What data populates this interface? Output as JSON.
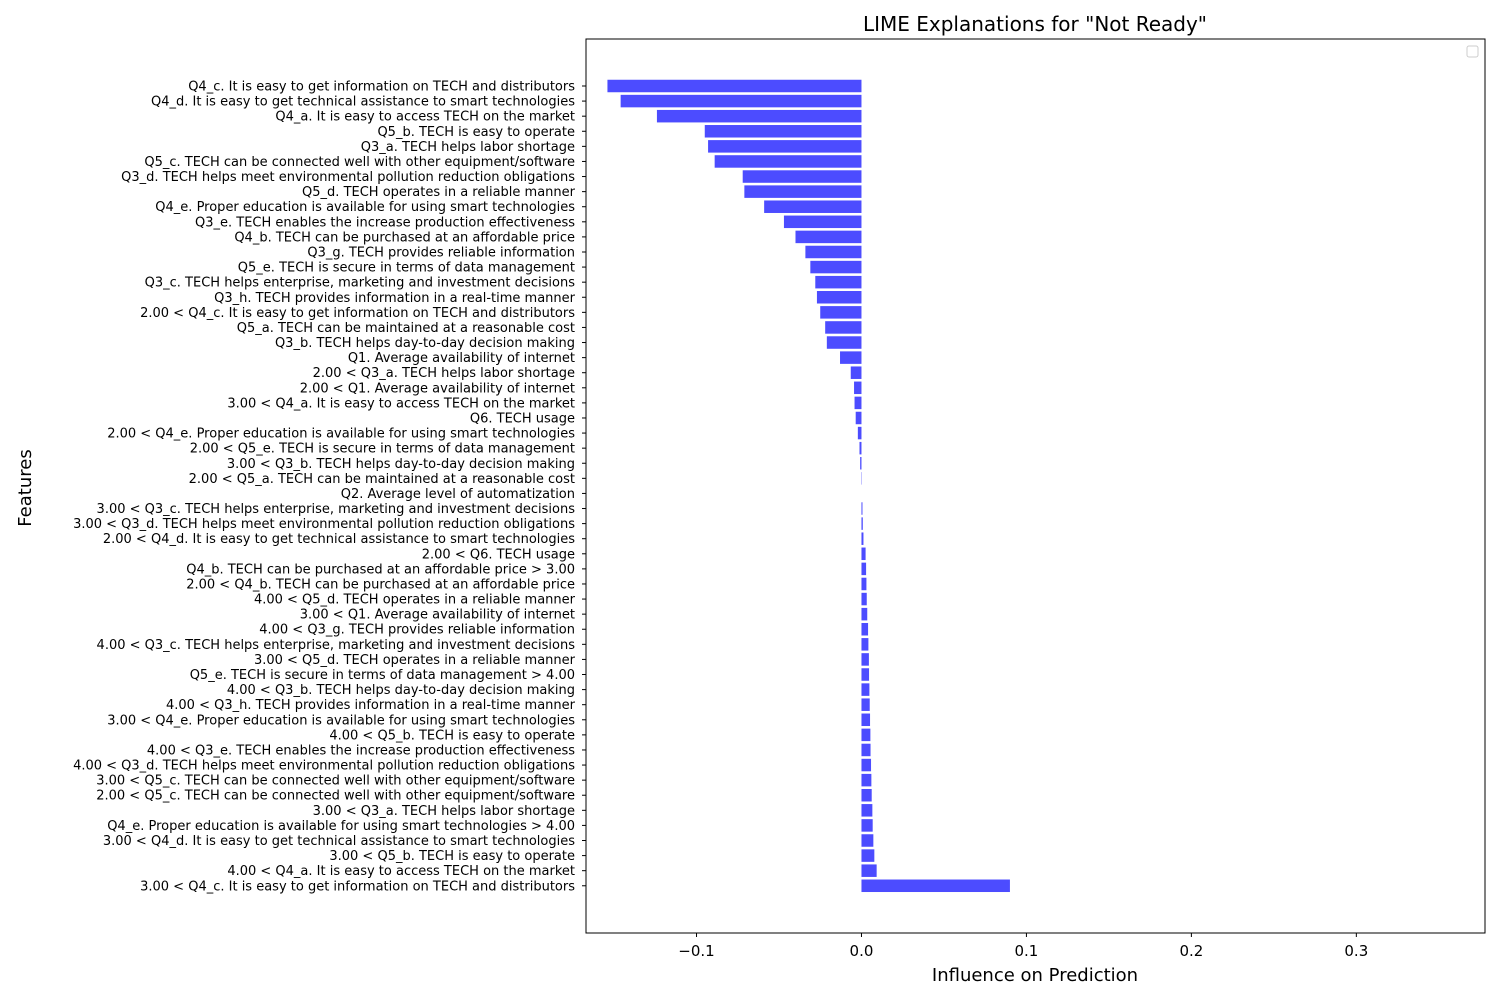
{
  "chart_data": {
    "type": "bar",
    "orientation": "horizontal",
    "title": "LIME Explanations for \"Not Ready\"",
    "xlabel": "Influence on Prediction",
    "ylabel": "Features",
    "xlim": [
      -0.167,
      0.378
    ],
    "x_ticks": [
      -0.1,
      0.0,
      0.1,
      0.2,
      0.3
    ],
    "x_tick_labels": [
      "−0.1",
      "0.0",
      "0.1",
      "0.2",
      "0.3"
    ],
    "grid": false,
    "legend": "top-right (empty)",
    "bar_color": "#4c4cff",
    "categories": [
      "Q4_c. It is easy to get information on TECH and distributors",
      "Q4_d. It is easy to get technical assistance to smart technologies",
      "Q4_a. It is easy to access TECH on the market",
      "Q5_b. TECH is easy to operate",
      "Q3_a. TECH helps labor shortage",
      "Q5_c. TECH can be connected well with other equipment/software",
      "Q3_d. TECH helps meet environmental pollution reduction obligations",
      "Q5_d. TECH operates in a reliable manner",
      "Q4_e. Proper education is available for using smart technologies",
      "Q3_e. TECH enables the increase production effectiveness",
      "Q4_b. TECH can be purchased at an affordable price",
      "Q3_g. TECH provides reliable information",
      "Q5_e. TECH is secure in terms of data management",
      "Q3_c. TECH helps enterprise, marketing and investment decisions",
      "Q3_h. TECH provides information in a real-time manner",
      "2.00 < Q4_c. It is easy to get information on TECH and distributors",
      "Q5_a. TECH can be maintained at a reasonable cost",
      "Q3_b. TECH helps day-to-day decision making",
      "Q1. Average availability of internet",
      "2.00 < Q3_a. TECH helps labor shortage",
      "2.00 < Q1. Average availability of internet",
      "3.00 < Q4_a. It is easy to access TECH on the market",
      "Q6. TECH usage",
      "2.00 < Q4_e. Proper education is available for using smart technologies",
      "2.00 < Q5_e. TECH is secure in terms of data management",
      "3.00 < Q3_b. TECH helps day-to-day decision making",
      "2.00 < Q5_a. TECH can be maintained at a reasonable cost",
      "Q2. Average level of automatization",
      "3.00 < Q3_c. TECH helps enterprise, marketing and investment decisions",
      "3.00 < Q3_d. TECH helps meet environmental pollution reduction obligations",
      "2.00 < Q4_d. It is easy to get technical assistance to smart technologies",
      "2.00 < Q6. TECH usage",
      "Q4_b. TECH can be purchased at an affordable price > 3.00",
      "2.00 < Q4_b. TECH can be purchased at an affordable price",
      "4.00 < Q5_d. TECH operates in a reliable manner",
      "3.00 < Q1. Average availability of internet",
      "4.00 < Q3_g. TECH provides reliable information",
      "4.00 < Q3_c. TECH helps enterprise, marketing and investment decisions",
      "3.00 < Q5_d. TECH operates in a reliable manner",
      "Q5_e. TECH is secure in terms of data management > 4.00",
      "4.00 < Q3_b. TECH helps day-to-day decision making",
      "4.00 < Q3_h. TECH provides information in a real-time manner",
      "3.00 < Q4_e. Proper education is available for using smart technologies",
      "4.00 < Q5_b. TECH is easy to operate",
      "4.00 < Q3_e. TECH enables the increase production effectiveness",
      "4.00 < Q3_d. TECH helps meet environmental pollution reduction obligations",
      "3.00 < Q5_c. TECH can be connected well with other equipment/software",
      "2.00 < Q5_c. TECH can be connected well with other equipment/software",
      "3.00 < Q3_a. TECH helps labor shortage",
      "Q4_e. Proper education is available for using smart technologies > 4.00",
      "3.00 < Q4_d. It is easy to get technical assistance to smart technologies",
      "3.00 < Q5_b. TECH is easy to operate",
      "4.00 < Q4_a. It is easy to access TECH on the market",
      "3.00 < Q4_c. It is easy to get information on TECH and distributors"
    ],
    "values": [
      -0.154,
      -0.146,
      -0.124,
      -0.095,
      -0.093,
      -0.089,
      -0.072,
      -0.071,
      -0.059,
      -0.047,
      -0.04,
      -0.034,
      -0.031,
      -0.028,
      -0.027,
      -0.025,
      -0.022,
      -0.021,
      -0.013,
      -0.0065,
      -0.0045,
      -0.0042,
      -0.0035,
      -0.0022,
      -0.0012,
      -0.0008,
      -0.0002,
      0.0,
      0.0006,
      0.0008,
      0.0012,
      0.0025,
      0.0028,
      0.003,
      0.0032,
      0.0035,
      0.004,
      0.0042,
      0.0045,
      0.0046,
      0.0048,
      0.005,
      0.0052,
      0.0054,
      0.0055,
      0.0058,
      0.006,
      0.0062,
      0.0066,
      0.0068,
      0.0072,
      0.0078,
      0.0092,
      0.09
    ]
  }
}
